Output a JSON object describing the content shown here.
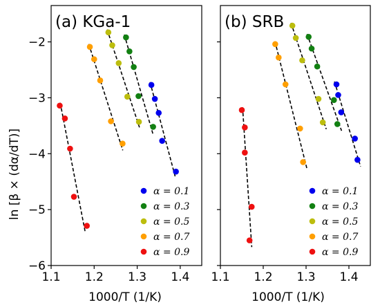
{
  "chart_data": [
    {
      "type": "scatter",
      "title": "(a) KGa-1",
      "xlabel": "1000/T (1/K)",
      "ylabel": "ln [β × (dα/dT)]",
      "xlim": [
        1.1,
        1.45
      ],
      "ylim": [
        -6,
        -1.35
      ],
      "xticks": [
        "1.1",
        "1.2",
        "1.3",
        "1.4"
      ],
      "yticks": [
        "−6",
        "−5",
        "−4",
        "−3",
        "−2"
      ],
      "grid": false,
      "legend_position": "lower-right",
      "series": [
        {
          "name": "α = 0.1",
          "color": "#0000ee",
          "x": [
            1.333,
            1.341,
            1.35,
            1.358,
            1.39
          ],
          "y": [
            -2.77,
            -3.02,
            -3.27,
            -3.77,
            -4.32
          ]
        },
        {
          "name": "α = 0.3",
          "color": "#128012",
          "x": [
            1.274,
            1.282,
            1.292,
            1.303,
            1.337
          ],
          "y": [
            -1.92,
            -2.17,
            -2.45,
            -2.97,
            -3.52
          ]
        },
        {
          "name": "α = 0.5",
          "color": "#bcbd0e",
          "x": [
            1.233,
            1.242,
            1.257,
            1.277,
            1.304
          ],
          "y": [
            -1.83,
            -2.06,
            -2.38,
            -2.98,
            -3.43
          ]
        },
        {
          "name": "α = 0.7",
          "color": "#ff9f00",
          "x": [
            1.19,
            1.2,
            1.214,
            1.239,
            1.266
          ],
          "y": [
            -2.09,
            -2.31,
            -2.69,
            -3.42,
            -3.82
          ]
        },
        {
          "name": "α = 0.9",
          "color": "#ee1010",
          "x": [
            1.12,
            1.132,
            1.144,
            1.153,
            1.183
          ],
          "y": [
            -3.14,
            -3.37,
            -3.91,
            -4.77,
            -5.29
          ]
        }
      ]
    },
    {
      "type": "scatter",
      "title": "(b) SRB",
      "xlabel": "1000/T (1/K)",
      "xlim": [
        1.1,
        1.45
      ],
      "ylim": [
        -6,
        -1.35
      ],
      "xticks": [
        "1.1",
        "1.2",
        "1.3",
        "1.4"
      ],
      "grid": false,
      "legend_position": "lower-right",
      "series": [
        {
          "name": "α = 0.1",
          "color": "#0000ee",
          "x": [
            1.371,
            1.375,
            1.382,
            1.414,
            1.42
          ],
          "y": [
            -2.76,
            -2.95,
            -3.26,
            -3.73,
            -4.11
          ]
        },
        {
          "name": "α = 0.3",
          "color": "#128012",
          "x": [
            1.306,
            1.313,
            1.326,
            1.365,
            1.373
          ],
          "y": [
            -1.91,
            -2.12,
            -2.44,
            -3.04,
            -3.47
          ]
        },
        {
          "name": "α = 0.5",
          "color": "#bcbd0e",
          "x": [
            1.268,
            1.276,
            1.291,
            1.329,
            1.339
          ],
          "y": [
            -1.71,
            -1.93,
            -2.33,
            -3.02,
            -3.44
          ]
        },
        {
          "name": "α = 0.7",
          "color": "#ff9f00",
          "x": [
            1.228,
            1.236,
            1.252,
            1.286,
            1.293
          ],
          "y": [
            -2.04,
            -2.28,
            -2.76,
            -3.55,
            -4.15
          ]
        },
        {
          "name": "α = 0.9",
          "color": "#ee1010",
          "x": [
            1.15,
            1.157,
            1.157,
            1.173,
            1.168
          ],
          "y": [
            -3.22,
            -3.53,
            -3.98,
            -4.95,
            -5.55
          ]
        }
      ]
    }
  ]
}
